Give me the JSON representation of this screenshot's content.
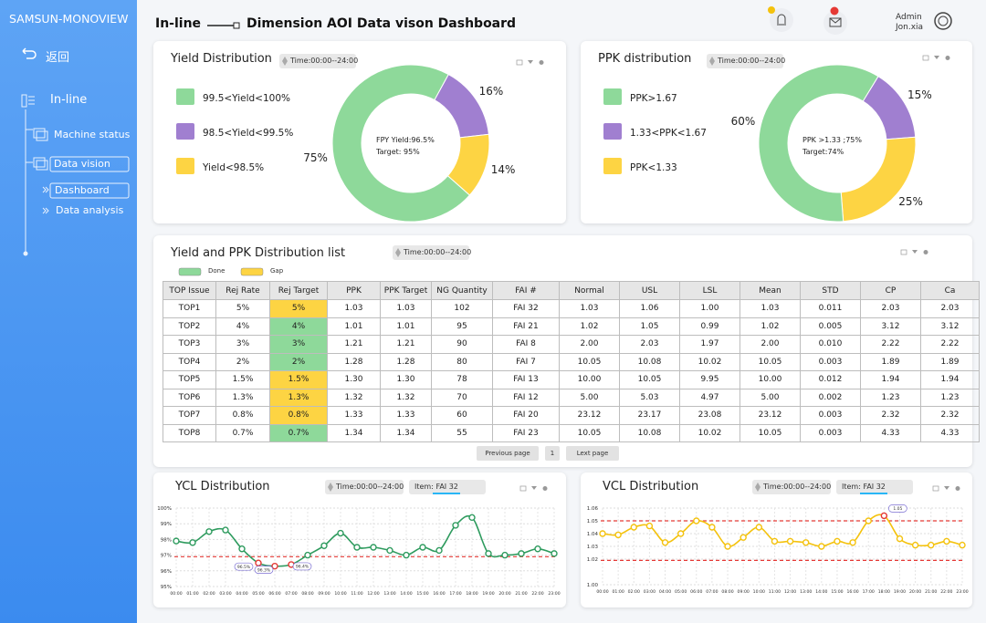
{
  "sidebar": {
    "brand": "SAMSUN-MONOVIEW",
    "back": "返回",
    "nav": [
      "In-line",
      "Machine status",
      "Data vision",
      "Dashboard",
      "Data analysis"
    ]
  },
  "header": {
    "section": "In-line",
    "title": "Dimension AOI Data vison Dashboard",
    "user": [
      "Admin",
      "Jon.xia"
    ]
  },
  "yield": {
    "type": "pie",
    "title": "Yield Distribution",
    "time": "Time:00:00--24:00",
    "legend": [
      "99.5<Yield<100%",
      "98.5<Yield<99.5%",
      "Yield<98.5%"
    ],
    "values": [
      75,
      16,
      14
    ],
    "value_labels": [
      "75%",
      "16%",
      "14%"
    ],
    "colors": [
      "#8ed99a",
      "#a07fd0",
      "#fdd443"
    ],
    "center": [
      "FPY Yield:96.5%",
      "Target:  95%"
    ]
  },
  "ppk": {
    "type": "pie",
    "title": "PPK distribution",
    "time": "Time:00:00--24:00",
    "legend": [
      "PPK>1.67",
      "1.33<PPK<1.67",
      "PPK<1.33"
    ],
    "values": [
      60,
      15,
      25
    ],
    "value_labels": [
      "60%",
      "15%",
      "25%"
    ],
    "colors": [
      "#8ed99a",
      "#a07fd0",
      "#fdd443"
    ],
    "center": [
      "PPK >1.33 ;75%",
      "Target:74%"
    ]
  },
  "table": {
    "title": "Yield and PPK Distribution list",
    "time": "Time:00:00--24:00",
    "legend": [
      {
        "label": "Done",
        "color": "#8ed99a"
      },
      {
        "label": "Gap",
        "color": "#fdd443"
      }
    ],
    "headers": [
      "TOP Issue",
      "Rej Rate",
      "Rej Target",
      "PPK",
      "PPK Target",
      "NG Quantity",
      "FAI #",
      "Normal",
      "USL",
      "LSL",
      "Mean",
      "STD",
      "CP",
      "Ca"
    ],
    "rows": [
      [
        "TOP1",
        "5%",
        "5%",
        "1.03",
        "1.03",
        "102",
        "FAI 32",
        "1.03",
        "1.06",
        "1.00",
        "1.03",
        "0.011",
        "2.03",
        "2.03"
      ],
      [
        "TOP2",
        "4%",
        "4%",
        "1.01",
        "1.01",
        "95",
        "FAI 21",
        "1.02",
        "1.05",
        "0.99",
        "1.02",
        "0.005",
        "3.12",
        "3.12"
      ],
      [
        "TOP3",
        "3%",
        "3%",
        "1.21",
        "1.21",
        "90",
        "FAI 8",
        "2.00",
        "2.03",
        "1.97",
        "2.00",
        "0.010",
        "2.22",
        "2.22"
      ],
      [
        "TOP4",
        "2%",
        "2%",
        "1.28",
        "1.28",
        "80",
        "FAI 7",
        "10.05",
        "10.08",
        "10.02",
        "10.05",
        "0.003",
        "1.89",
        "1.89"
      ],
      [
        "TOP5",
        "1.5%",
        "1.5%",
        "1.30",
        "1.30",
        "78",
        "FAI 13",
        "10.00",
        "10.05",
        "9.95",
        "10.00",
        "0.012",
        "1.94",
        "1.94"
      ],
      [
        "TOP6",
        "1.3%",
        "1.3%",
        "1.32",
        "1.32",
        "70",
        "FAI 12",
        "5.00",
        "5.03",
        "4.97",
        "5.00",
        "0.002",
        "1.23",
        "1.23"
      ],
      [
        "TOP7",
        "0.8%",
        "0.8%",
        "1.33",
        "1.33",
        "60",
        "FAI 20",
        "23.12",
        "23.17",
        "23.08",
        "23.12",
        "0.003",
        "2.32",
        "2.32"
      ],
      [
        "TOP8",
        "0.7%",
        "0.7%",
        "1.34",
        "1.34",
        "55",
        "FAI 23",
        "10.05",
        "10.08",
        "10.02",
        "10.05",
        "0.003",
        "4.33",
        "4.33"
      ]
    ],
    "target_colors": [
      "#fdd443",
      "#8ed99a",
      "#8ed99a",
      "#8ed99a",
      "#fdd443",
      "#fdd443",
      "#fdd443",
      "#8ed99a"
    ],
    "pagination": [
      "Previous page",
      "1",
      "Lext page"
    ]
  },
  "ycl": {
    "type": "line",
    "title": "YCL Distribution",
    "time": "Time:00:00--24:00",
    "item": "Item: FAI 32",
    "x": [
      "00:00",
      "01:00",
      "02:00",
      "03:00",
      "04:00",
      "05:00",
      "06:00",
      "07:00",
      "08:00",
      "09:00",
      "10:00",
      "11:00",
      "12:00",
      "13:00",
      "14:00",
      "15:00",
      "16:00",
      "17:00",
      "18:00",
      "19:00",
      "20:00",
      "21:00",
      "22:00",
      "23:00"
    ],
    "values": [
      97.9,
      97.8,
      98.5,
      98.6,
      97.4,
      96.5,
      96.3,
      96.4,
      97.0,
      97.6,
      98.4,
      97.5,
      97.5,
      97.3,
      97.0,
      97.5,
      97.3,
      98.9,
      99.4,
      97.1,
      97.0,
      97.1,
      97.4,
      97.1
    ],
    "value_labels": [
      null,
      null,
      null,
      null,
      null,
      "96.5%",
      "96.3%",
      "96.4%",
      null,
      null,
      null,
      null,
      null,
      null,
      null,
      null,
      null,
      null,
      null,
      null,
      null,
      null,
      null,
      null
    ],
    "ylim": [
      95,
      100
    ],
    "yticks": [
      {
        "value": 95,
        "label": "95%"
      },
      {
        "value": 96,
        "label": "96%"
      },
      {
        "value": 97,
        "label": "97%"
      },
      {
        "value": 98,
        "label": "98%"
      },
      {
        "value": 99,
        "label": "99%"
      },
      {
        "value": 100,
        "label": "100%"
      }
    ],
    "targets": [
      96.9
    ],
    "color": "#2e9b5e",
    "grid": true
  },
  "vcl": {
    "type": "line",
    "title": "VCL Distribution",
    "time": "Time:00:00--24:00",
    "item": "Item: FAI 32",
    "x": [
      "00:00",
      "01:00",
      "02:00",
      "03:00",
      "04:00",
      "05:00",
      "06:00",
      "07:00",
      "08:00",
      "09:00",
      "10:00",
      "11:00",
      "12:00",
      "13:00",
      "14:00",
      "15:00",
      "16:00",
      "17:00",
      "18:00",
      "19:00",
      "20:00",
      "21:00",
      "22:00",
      "23:00"
    ],
    "values": [
      1.04,
      1.039,
      1.045,
      1.046,
      1.033,
      1.04,
      1.05,
      1.045,
      1.03,
      1.037,
      1.045,
      1.034,
      1.034,
      1.033,
      1.03,
      1.034,
      1.033,
      1.05,
      1.054,
      1.036,
      1.031,
      1.031,
      1.034,
      1.031
    ],
    "value_labels": [
      null,
      null,
      null,
      null,
      null,
      null,
      null,
      null,
      null,
      null,
      null,
      null,
      null,
      null,
      null,
      null,
      null,
      null,
      "1.05",
      null,
      null,
      null,
      null,
      null
    ],
    "ylim": [
      1,
      1.06
    ],
    "yticks": [
      {
        "value": 1,
        "label": "1.00"
      },
      1.02,
      1.03,
      1.04,
      1.05,
      1.06
    ],
    "targets": [
      1.05,
      1.019
    ],
    "color": "#f4c20d",
    "grid": true
  }
}
